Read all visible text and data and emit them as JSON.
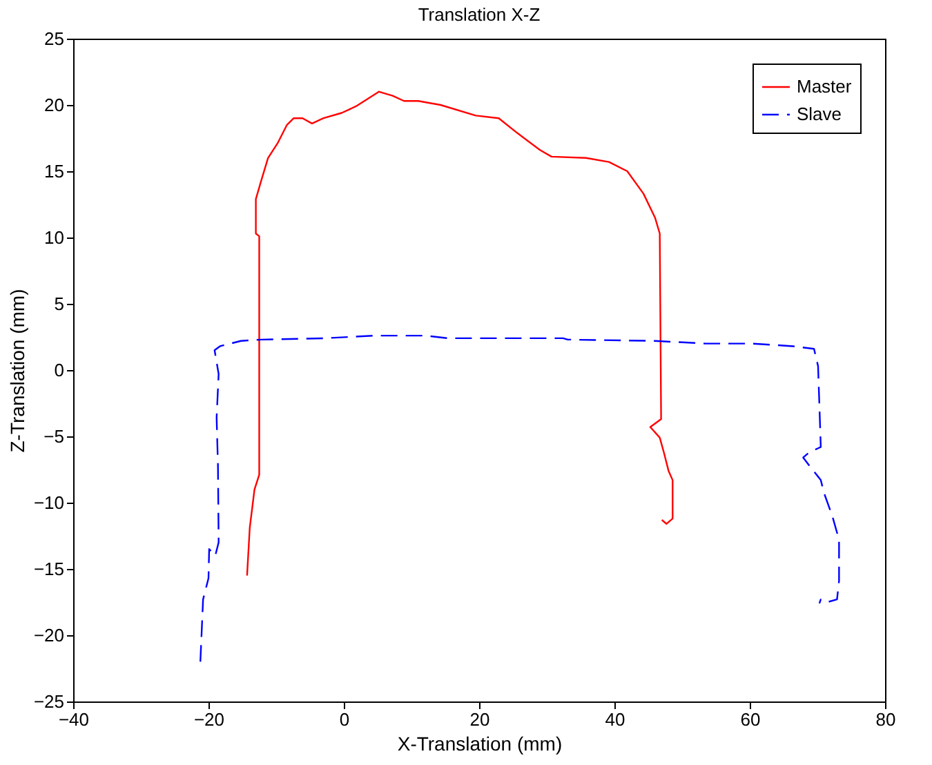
{
  "chart_data": {
    "type": "line",
    "title": "Translation X-Z",
    "xlabel": "X-Translation (mm)",
    "ylabel": "Z-Translation (mm)",
    "xlim": [
      -40,
      80
    ],
    "xticks": [
      -40,
      -20,
      0,
      20,
      40,
      60,
      80
    ],
    "ylim": [
      -25,
      25
    ],
    "yticks": [
      -25,
      -20,
      -15,
      -10,
      -5,
      0,
      5,
      10,
      15,
      20,
      25
    ],
    "grid": false,
    "legend": "top right",
    "marker": "none",
    "series": [
      {
        "name": "Master",
        "color": "#ff0000",
        "line_style": "solid",
        "x": [
          -14.3,
          -13.9,
          -13.2,
          -12.5,
          -12.5,
          -13,
          -13,
          -12.2,
          -11.2,
          -9.8,
          -8.4,
          -7.4,
          -6.1,
          -4.7,
          -3,
          -0.3,
          1.8,
          5.2,
          7.2,
          8.9,
          11,
          14.3,
          19.5,
          22.9,
          25.6,
          29,
          30.7,
          35.8,
          39.2,
          41.9,
          44.3,
          46,
          46.7,
          46.9,
          45.3,
          46.7,
          47.3,
          48,
          48.6,
          48.6,
          47.7,
          47
        ],
        "values": [
          -15.5,
          -11.9,
          -9,
          -7.9,
          10.1,
          10.3,
          12.9,
          14.3,
          16,
          17.1,
          18.5,
          19,
          19,
          18.6,
          19,
          19.4,
          19.9,
          21,
          20.7,
          20.3,
          20.3,
          20,
          19.2,
          19,
          17.9,
          16.6,
          16.1,
          16,
          15.7,
          15,
          13.3,
          11.5,
          10.3,
          -3.7,
          -4.3,
          -5.1,
          -6.2,
          -7.6,
          -8.3,
          -11.2,
          -11.6,
          -11.3
        ]
      },
      {
        "name": "Slave",
        "color": "#0000ff",
        "line_style": "dashed",
        "x": [
          -21.2,
          -20.8,
          -20,
          -19.9,
          -19,
          -18.5,
          -18.6,
          -18.8,
          -18.5,
          -19.1,
          -18.3,
          -15.2,
          -12.2,
          -3,
          4.5,
          12,
          15.4,
          32.4,
          33.1,
          46,
          53.5,
          60.3,
          66.4,
          69.5,
          70.1,
          70.5,
          70.1,
          68.8,
          67.9,
          69.1,
          70.5,
          71,
          72.2,
          73.2,
          73.2,
          72.9,
          71.5,
          70.5,
          70.3
        ],
        "values": [
          -22,
          -17.3,
          -15.7,
          -13.5,
          -14,
          -13,
          -7.2,
          -3.6,
          -0.3,
          1.5,
          1.8,
          2.2,
          2.3,
          2.4,
          2.6,
          2.6,
          2.4,
          2.4,
          2.3,
          2.2,
          2,
          2,
          1.8,
          1.6,
          0.3,
          -5.8,
          -5.9,
          -6.2,
          -6.6,
          -7.4,
          -8.3,
          -9.3,
          -11,
          -12.8,
          -15.9,
          -17.3,
          -17.5,
          -17.3,
          -17.6
        ]
      }
    ]
  }
}
